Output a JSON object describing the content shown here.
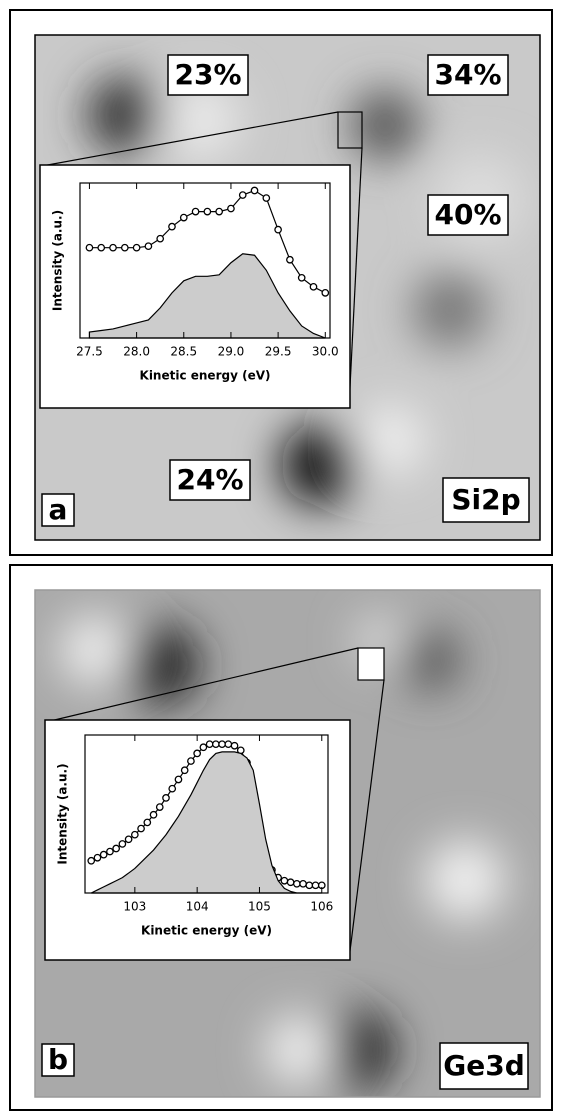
{
  "chart_data": [
    {
      "type": "line",
      "panel_label": "a",
      "element": "Si2p",
      "annotations": [
        "23%",
        "34%",
        "40%",
        "24%"
      ],
      "x_label": "Kinetic energy (eV)",
      "y_label": "Intensity (a.u.)",
      "x": [
        27.5,
        27.625,
        27.75,
        27.875,
        28.0,
        28.125,
        28.25,
        28.375,
        28.5,
        28.625,
        28.75,
        28.875,
        29.0,
        29.125,
        29.25,
        29.375,
        29.5,
        29.625,
        29.75,
        29.875,
        30.0
      ],
      "series": [
        {
          "style": "circles",
          "color": "#000000",
          "values": [
            0.6,
            0.6,
            0.6,
            0.6,
            0.6,
            0.61,
            0.66,
            0.74,
            0.8,
            0.84,
            0.84,
            0.84,
            0.86,
            0.95,
            0.98,
            0.93,
            0.72,
            0.52,
            0.4,
            0.34,
            0.3
          ]
        },
        {
          "style": "area",
          "color": "#cccccc",
          "values": [
            0.04,
            0.05,
            0.06,
            0.08,
            0.1,
            0.12,
            0.2,
            0.3,
            0.38,
            0.41,
            0.41,
            0.42,
            0.5,
            0.56,
            0.55,
            0.45,
            0.3,
            0.18,
            0.08,
            0.03,
            0.0
          ]
        }
      ],
      "xlim": [
        27.4,
        30.05
      ],
      "ylim": [
        0,
        1.03
      ],
      "xticks": [
        27.5,
        {
          "value": 28,
          "label": "28.0"
        },
        28.5,
        {
          "value": 29,
          "label": "29.0"
        },
        29.5,
        {
          "value": 30,
          "label": "30.0"
        }
      ]
    },
    {
      "type": "line",
      "panel_label": "b",
      "element": "Ge3d",
      "annotations": [],
      "x_label": "Kinetic energy (eV)",
      "y_label": "Intensity (a.u.)",
      "x": [
        102.3,
        102.4,
        102.5,
        102.6,
        102.7,
        102.8,
        102.9,
        103.0,
        103.1,
        103.2,
        103.3,
        103.4,
        103.5,
        103.6,
        103.7,
        103.8,
        103.9,
        104.0,
        104.1,
        104.2,
        104.3,
        104.4,
        104.5,
        104.6,
        104.7,
        104.8,
        104.9,
        105.0,
        105.1,
        105.2,
        105.3,
        105.4,
        105.5,
        105.6,
        105.7,
        105.8,
        105.9,
        106.0
      ],
      "series": [
        {
          "style": "circles",
          "color": "#000000",
          "values": [
            0.21,
            0.23,
            0.25,
            0.27,
            0.29,
            0.32,
            0.35,
            0.38,
            0.42,
            0.46,
            0.51,
            0.56,
            0.62,
            0.68,
            0.74,
            0.8,
            0.86,
            0.91,
            0.95,
            0.97,
            0.97,
            0.97,
            0.97,
            0.96,
            0.93,
            0.85,
            0.68,
            0.45,
            0.25,
            0.15,
            0.1,
            0.08,
            0.07,
            0.06,
            0.06,
            0.05,
            0.05,
            0.05
          ]
        },
        {
          "style": "area",
          "color": "#cccccc",
          "values": [
            0,
            0.02,
            0.04,
            0.06,
            0.08,
            0.1,
            0.13,
            0.16,
            0.2,
            0.24,
            0.28,
            0.33,
            0.38,
            0.44,
            0.5,
            0.57,
            0.64,
            0.72,
            0.8,
            0.87,
            0.91,
            0.92,
            0.92,
            0.92,
            0.91,
            0.88,
            0.8,
            0.58,
            0.35,
            0.18,
            0.08,
            0.03,
            0.01,
            0,
            0,
            0,
            0,
            0
          ]
        }
      ],
      "xlim": [
        102.2,
        106.1
      ],
      "ylim": [
        0,
        1.03
      ],
      "xticks": [
        103,
        104,
        105,
        106
      ]
    }
  ]
}
